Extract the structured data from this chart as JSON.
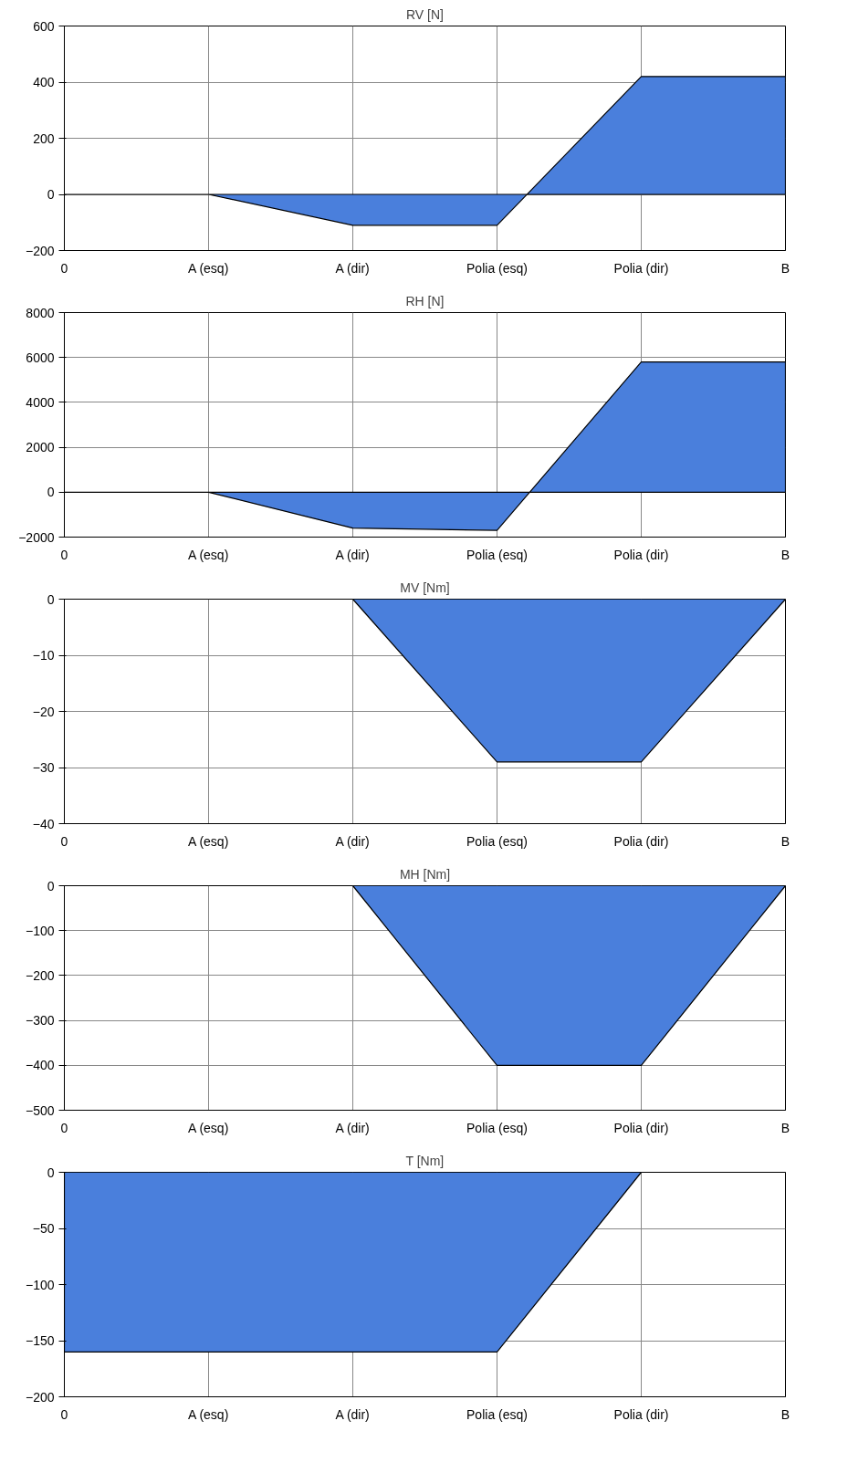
{
  "chart_data": [
    {
      "type": "area",
      "title": "RV [N]",
      "categories": [
        "0",
        "A (esq)",
        "A (dir)",
        "Polia (esq)",
        "Polia (dir)",
        "B"
      ],
      "values": [
        0,
        0,
        -110,
        -110,
        420,
        420
      ],
      "color": "#4a7fdc",
      "ylim": [
        -200,
        600
      ],
      "yticks": [
        -200,
        0,
        200,
        400,
        600
      ],
      "grid": true
    },
    {
      "type": "area",
      "title": "RH [N]",
      "categories": [
        "0",
        "A (esq)",
        "A (dir)",
        "Polia (esq)",
        "Polia (dir)",
        "B"
      ],
      "values": [
        0,
        0,
        -1600,
        -1700,
        5800,
        5800
      ],
      "color": "#4a7fdc",
      "ylim": [
        -2000,
        8000
      ],
      "yticks": [
        -2000,
        0,
        2000,
        4000,
        6000,
        8000
      ],
      "grid": true
    },
    {
      "type": "area",
      "title": "MV [Nm]",
      "categories": [
        "0",
        "A (esq)",
        "A (dir)",
        "Polia (esq)",
        "Polia (dir)",
        "B"
      ],
      "values": [
        0,
        0,
        0,
        -29,
        -29,
        0
      ],
      "color": "#4a7fdc",
      "ylim": [
        -40,
        0
      ],
      "yticks": [
        -40,
        -30,
        -20,
        -10,
        0
      ],
      "grid": true
    },
    {
      "type": "area",
      "title": "MH [Nm]",
      "categories": [
        "0",
        "A (esq)",
        "A (dir)",
        "Polia (esq)",
        "Polia (dir)",
        "B"
      ],
      "values": [
        0,
        0,
        0,
        -400,
        -400,
        0
      ],
      "color": "#4a7fdc",
      "ylim": [
        -500,
        0
      ],
      "yticks": [
        -500,
        -400,
        -300,
        -200,
        -100,
        0
      ],
      "grid": true
    },
    {
      "type": "area",
      "title": "T [Nm]",
      "categories": [
        "0",
        "A (esq)",
        "A (dir)",
        "Polia (esq)",
        "Polia (dir)",
        "B"
      ],
      "values": [
        -160,
        -160,
        -160,
        -160,
        0,
        0
      ],
      "color": "#4a7fdc",
      "ylim": [
        -200,
        0
      ],
      "yticks": [
        -200,
        -150,
        -100,
        -50,
        0
      ],
      "grid": true
    }
  ]
}
